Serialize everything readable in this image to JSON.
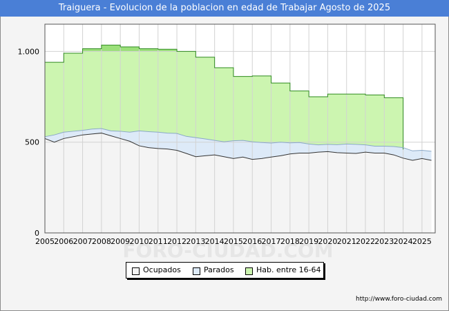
{
  "title": "Traiguera - Evolucion de la poblacion en edad de Trabajar Agosto de 2025",
  "watermark": "FORO-CIUDAD.COM",
  "url": "http://www.foro-ciudad.com",
  "colors": {
    "title_bg": "#4a7fd6",
    "hab_fill": "#ccf5b0",
    "hab_top": "#9be07a",
    "hab_line": "#2e8b1e",
    "parados_fill": "#ddeaf8",
    "parados_line": "#8aa8c8",
    "ocupados_fill": "#f4f4f4",
    "ocupados_line": "#333333"
  },
  "chart_data": {
    "type": "area",
    "title": "Traiguera - Evolucion de la poblacion en edad de Trabajar Agosto de 2025",
    "xlabel": "",
    "ylabel": "",
    "xlim": [
      2005,
      2025.7
    ],
    "ylim": [
      0,
      1150
    ],
    "x_ticks": [
      "2005",
      "2006",
      "2007",
      "2008",
      "2009",
      "2010",
      "2011",
      "2012",
      "2013",
      "2014",
      "2015",
      "2016",
      "2017",
      "2018",
      "2019",
      "2020",
      "2021",
      "2022",
      "2023",
      "2024",
      "2025"
    ],
    "y_ticks": [
      {
        "value": 0,
        "label": "0"
      },
      {
        "value": 500,
        "label": "500"
      },
      {
        "value": 1000,
        "label": "1.000"
      }
    ],
    "grid": true,
    "legend_position": "bottom",
    "series": [
      {
        "name": "Hab. entre 16-64",
        "kind": "step",
        "x": [
          2005,
          2006,
          2007,
          2008,
          2009,
          2010,
          2011,
          2012,
          2013,
          2014,
          2015,
          2016,
          2017,
          2018,
          2019,
          2020,
          2021,
          2022,
          2023
        ],
        "values": [
          940,
          990,
          1015,
          1035,
          1025,
          1015,
          1012,
          1000,
          968,
          910,
          862,
          865,
          826,
          782,
          750,
          765,
          765,
          760,
          745
        ]
      },
      {
        "name": "Parados",
        "kind": "line",
        "x": [
          2005,
          2005.5,
          2006,
          2006.5,
          2007,
          2007.5,
          2008,
          2008.5,
          2009,
          2009.5,
          2010,
          2010.5,
          2011,
          2011.5,
          2012,
          2012.5,
          2013,
          2013.5,
          2014,
          2014.5,
          2015,
          2015.5,
          2016,
          2016.5,
          2017,
          2017.5,
          2018,
          2018.5,
          2019,
          2019.5,
          2020,
          2020.5,
          2021,
          2021.5,
          2022,
          2022.5,
          2023,
          2023.5,
          2024,
          2024.5,
          2025,
          2025.5
        ],
        "values": [
          530,
          540,
          555,
          560,
          565,
          572,
          575,
          562,
          560,
          555,
          562,
          558,
          555,
          550,
          548,
          532,
          525,
          518,
          510,
          502,
          508,
          510,
          502,
          498,
          495,
          500,
          496,
          498,
          490,
          485,
          488,
          486,
          490,
          488,
          485,
          478,
          478,
          476,
          470,
          452,
          455,
          450
        ]
      },
      {
        "name": "Ocupados",
        "kind": "line",
        "x": [
          2005,
          2005.5,
          2006,
          2006.5,
          2007,
          2007.5,
          2008,
          2008.5,
          2009,
          2009.5,
          2010,
          2010.5,
          2011,
          2011.5,
          2012,
          2012.5,
          2013,
          2013.5,
          2014,
          2014.5,
          2015,
          2015.5,
          2016,
          2016.5,
          2017,
          2017.5,
          2018,
          2018.5,
          2019,
          2019.5,
          2020,
          2020.5,
          2021,
          2021.5,
          2022,
          2022.5,
          2023,
          2023.5,
          2024,
          2024.5,
          2025,
          2025.5
        ],
        "values": [
          520,
          500,
          520,
          530,
          540,
          545,
          550,
          535,
          520,
          505,
          480,
          470,
          465,
          462,
          455,
          438,
          420,
          425,
          430,
          420,
          410,
          418,
          405,
          410,
          418,
          425,
          435,
          440,
          440,
          445,
          448,
          442,
          440,
          438,
          445,
          440,
          440,
          430,
          412,
          400,
          410,
          400
        ]
      }
    ]
  }
}
